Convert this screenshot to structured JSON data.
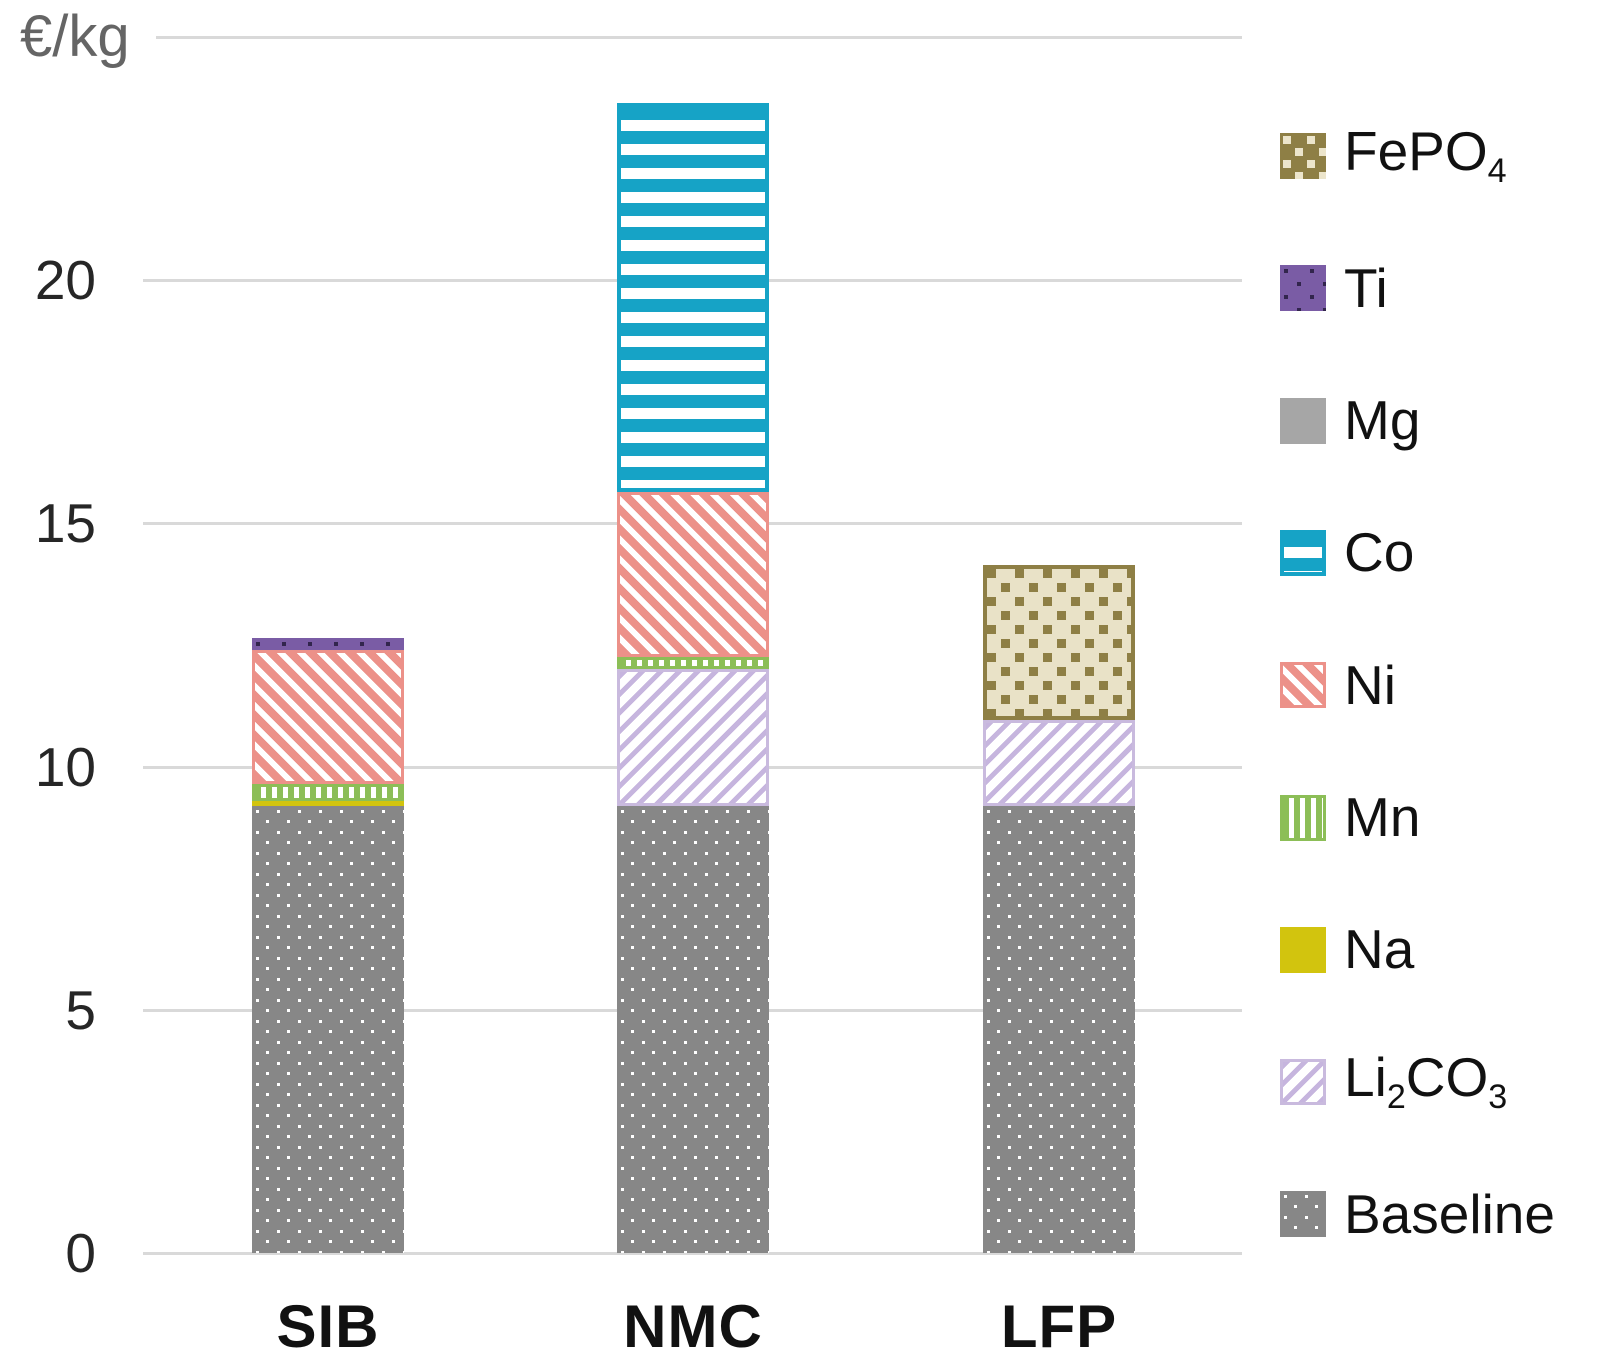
{
  "chart_data": {
    "type": "bar",
    "stacked": true,
    "title": "",
    "ylabel": "€/kg",
    "xlabel": "",
    "categories": [
      "SIB",
      "NMC",
      "LFP"
    ],
    "series": [
      {
        "key": "baseline",
        "name": "Baseline",
        "values": [
          9.2,
          9.2,
          9.2
        ],
        "color": "#878787",
        "pattern": "white-dots-on-gray"
      },
      {
        "key": "li2co3",
        "name": "Li₂CO₃",
        "values": [
          0,
          2.8,
          1.75
        ],
        "color": "#c6b5de",
        "pattern": "lavender-diagonal-stripes-on-white"
      },
      {
        "key": "na",
        "name": "Na",
        "values": [
          0.1,
          0,
          0
        ],
        "color": "#d2c40e",
        "pattern": "solid"
      },
      {
        "key": "mn",
        "name": "Mn",
        "values": [
          0.35,
          0.25,
          0
        ],
        "color": "#8cbe57",
        "pattern": "white-vertical-stripes-on-green"
      },
      {
        "key": "ni",
        "name": "Ni",
        "values": [
          2.75,
          3.4,
          0
        ],
        "color": "#ec9189",
        "pattern": "white-diagonal-stripes-on-salmon"
      },
      {
        "key": "co",
        "name": "Co",
        "values": [
          0,
          8,
          0
        ],
        "color": "#16a3c6",
        "pattern": "white-horizontal-stripes-on-cyan"
      },
      {
        "key": "mg",
        "name": "Mg",
        "values": [
          0,
          0,
          0
        ],
        "color": "#a6a6a6",
        "pattern": "solid"
      },
      {
        "key": "ti",
        "name": "Ti",
        "values": [
          0.25,
          0,
          0
        ],
        "color": "#7a5ca5",
        "pattern": "dark-dots-on-purple"
      },
      {
        "key": "fepo4",
        "name": "FePO₄",
        "values": [
          0,
          0,
          3.2
        ],
        "color": "#8e7f45",
        "pattern": "olive-checker-on-tan"
      }
    ],
    "legend_order": [
      "FePO₄",
      "Ti",
      "Mg",
      "Co",
      "Ni",
      "Mn",
      "Na",
      "Li₂CO₃",
      "Baseline"
    ],
    "totals_estimated": [
      12.65,
      23.65,
      14.15
    ],
    "yticks": [
      0,
      5,
      10,
      15,
      20
    ],
    "gridline_values": [
      0,
      5,
      10,
      15,
      20,
      25
    ],
    "ylim": [
      0,
      25
    ],
    "grid": true,
    "legend_position": "right",
    "gridline_color": "#d9d9d9",
    "tick_label_color": "#262626",
    "category_label_color": "#111111",
    "ylabel_color": "#656565"
  }
}
